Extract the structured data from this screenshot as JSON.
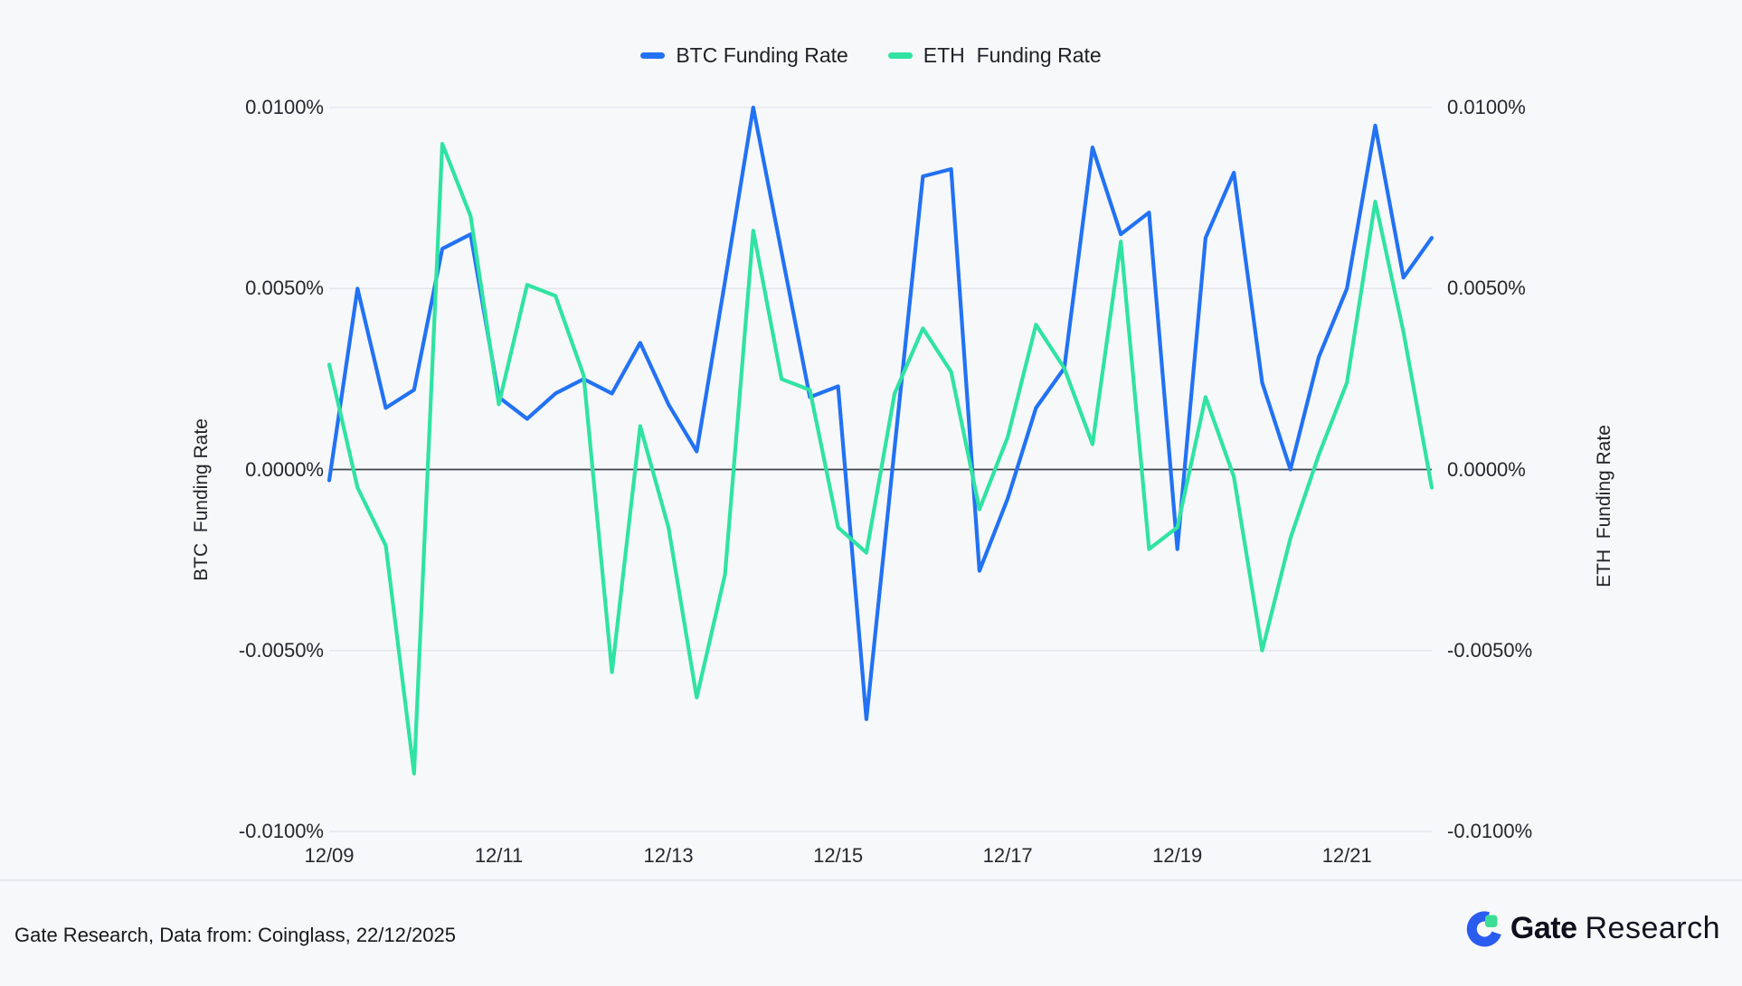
{
  "legend": [
    {
      "label": "BTC Funding Rate",
      "color": "#2272f3"
    },
    {
      "label": "ETH  Funding Rate",
      "color": "#30e3a2"
    }
  ],
  "left_axis": {
    "title": "BTC  Funding Rate"
  },
  "right_axis": {
    "title": "ETH  Funding Rate"
  },
  "footer": {
    "source": "Gate Research, Data from: Coinglass, 22/12/2025",
    "logo_text_bold": "Gate",
    "logo_text_light": "Research"
  },
  "colors": {
    "background": "#f7f8fa",
    "grid_line": "#e2e4e9",
    "zero_line": "#3d424a",
    "btc_line": "#2272f3",
    "eth_line": "#30e3a2",
    "logo_blue": "#2b5cf0",
    "logo_green": "#3cdd95"
  },
  "chart_data": {
    "type": "line",
    "title": "",
    "xlabel": "",
    "x_tick_labels": [
      "12/09",
      "12/11",
      "12/13",
      "12/15",
      "12/17",
      "12/19",
      "12/21"
    ],
    "x_tick_indices": [
      0,
      6,
      12,
      18,
      24,
      30,
      36
    ],
    "n_points": 40,
    "x_interval": "8 hours, 12/09 through 12/22",
    "y_tick_labels": [
      "0.0100%",
      "0.0050%",
      "0.0000%",
      "-0.0050%",
      "-0.0100%"
    ],
    "y_tick_values": [
      0.01,
      0.005,
      0,
      -0.005,
      -0.01
    ],
    "ylim": [
      -0.01,
      0.01
    ],
    "unit": "%",
    "grid": "horizontal-only",
    "legend_position": "top-center",
    "series": [
      {
        "name": "BTC Funding Rate",
        "color": "#2272f3",
        "values": [
          -0.0003,
          0.005,
          0.0017,
          0.0022,
          0.0061,
          0.0065,
          0.002,
          0.0014,
          0.0021,
          0.0025,
          0.0021,
          0.0035,
          0.0018,
          0.0005,
          0.0052,
          0.01,
          0.006,
          0.002,
          0.0023,
          -0.0069,
          0.0006,
          0.0081,
          0.0083,
          -0.0028,
          -0.0008,
          0.0017,
          0.0028,
          0.0089,
          0.0065,
          0.0071,
          -0.0022,
          0.0064,
          0.0082,
          0.0024,
          0.0,
          0.0031,
          0.005,
          0.0095,
          0.0053,
          0.0064
        ]
      },
      {
        "name": "ETH Funding Rate",
        "color": "#30e3a2",
        "values": [
          0.0029,
          -0.0005,
          -0.0021,
          -0.0084,
          0.009,
          0.007,
          0.0018,
          0.0051,
          0.0048,
          0.0026,
          -0.0056,
          0.0012,
          -0.0016,
          -0.0063,
          -0.0029,
          0.0066,
          0.0025,
          0.0022,
          -0.0016,
          -0.0023,
          0.0021,
          0.0039,
          0.0027,
          -0.0011,
          0.0009,
          0.004,
          0.0028,
          0.0007,
          0.0063,
          -0.0022,
          -0.0016,
          0.002,
          -0.0002,
          -0.005,
          -0.0019,
          0.0004,
          0.0024,
          0.0074,
          0.0038,
          -0.0005
        ]
      }
    ]
  }
}
